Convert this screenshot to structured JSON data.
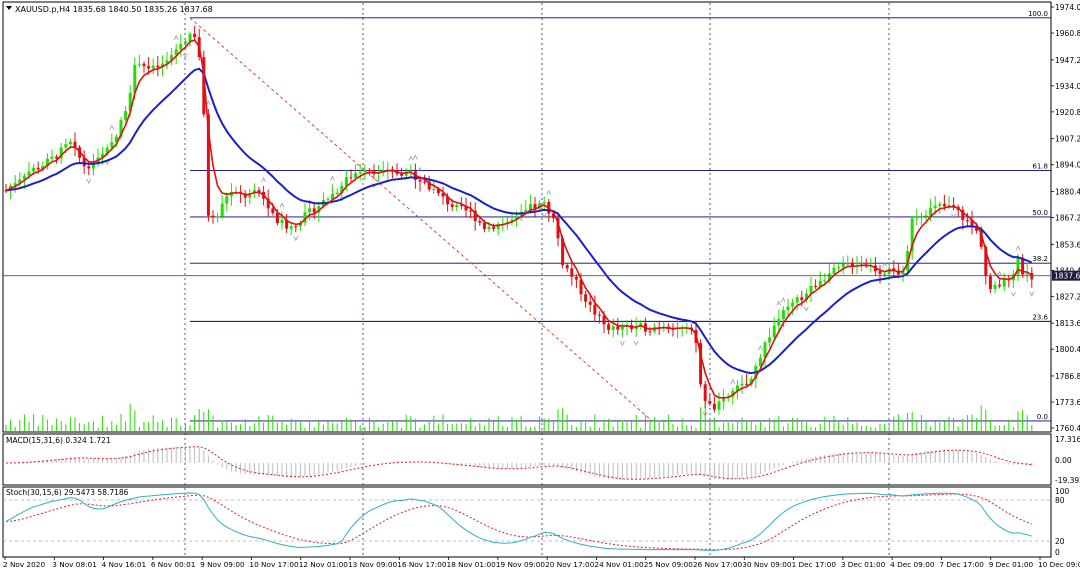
{
  "header": {
    "symbol_line": "XAUUSD.p,H4  1835.68 1840.50 1835.26 1837.68"
  },
  "price_axis": {
    "ticks": [
      "1974.00",
      "1960.80",
      "1947.20",
      "1934.00",
      "1920.80",
      "1907.20",
      "1894.00",
      "1880.40",
      "1867.20",
      "1853.60",
      "1840.40",
      "1827.20",
      "1813.60",
      "1800.40",
      "1786.80",
      "1773.60",
      "1760.40"
    ],
    "current_price": "1837.68"
  },
  "fibonacci": {
    "levels": [
      {
        "label": "100.0",
        "price": 1968.5
      },
      {
        "label": "61.8",
        "price": 1891.0
      },
      {
        "label": "50.0",
        "price": 1867.5
      },
      {
        "label": "38.2",
        "price": 1844.0
      },
      {
        "label": "23.6",
        "price": 1814.5
      },
      {
        "label": "0.0",
        "price": 1764.0
      }
    ]
  },
  "macd": {
    "label": "MACD(15,31,6) 0.324 1.721",
    "ticks": [
      "17.316",
      "0.00",
      "-19.392"
    ]
  },
  "stoch": {
    "label": "Stoch(30,15,6) 29.5473 58.7186",
    "ticks": [
      "100",
      "80",
      "20",
      "0"
    ]
  },
  "time_axis": {
    "labels": [
      "2 Nov 2020",
      "3 Nov 08:01",
      "4 Nov 16:01",
      "6 Nov 00:01",
      "9 Nov 09:00",
      "10 Nov 17:00",
      "12 Nov 01:00",
      "13 Nov 09:00",
      "16 Nov 17:00",
      "18 Nov 01:00",
      "19 Nov 09:00",
      "20 Nov 17:00",
      "24 Nov 01:00",
      "25 Nov 09:00",
      "26 Nov 17:00",
      "30 Nov 09:00",
      "1 Dec 17:00",
      "3 Dec 01:00",
      "4 Dec 09:00",
      "7 Dec 17:00",
      "9 Dec 01:00",
      "10 Dec 09:00"
    ]
  },
  "colors": {
    "bull": "#22dd00",
    "bear": "#dd1111",
    "ma_fast": "#e01010",
    "ma_slow": "#1a20c8",
    "fib_line": "#00007a",
    "grid_vline": "#2a2a8a",
    "macd_hist": "#bbbbbb",
    "macd_signal": "#e02020",
    "stoch_main": "#30b0c0",
    "stoch_signal": "#e02020",
    "current_price_bg": "#1c1c3c"
  }
}
